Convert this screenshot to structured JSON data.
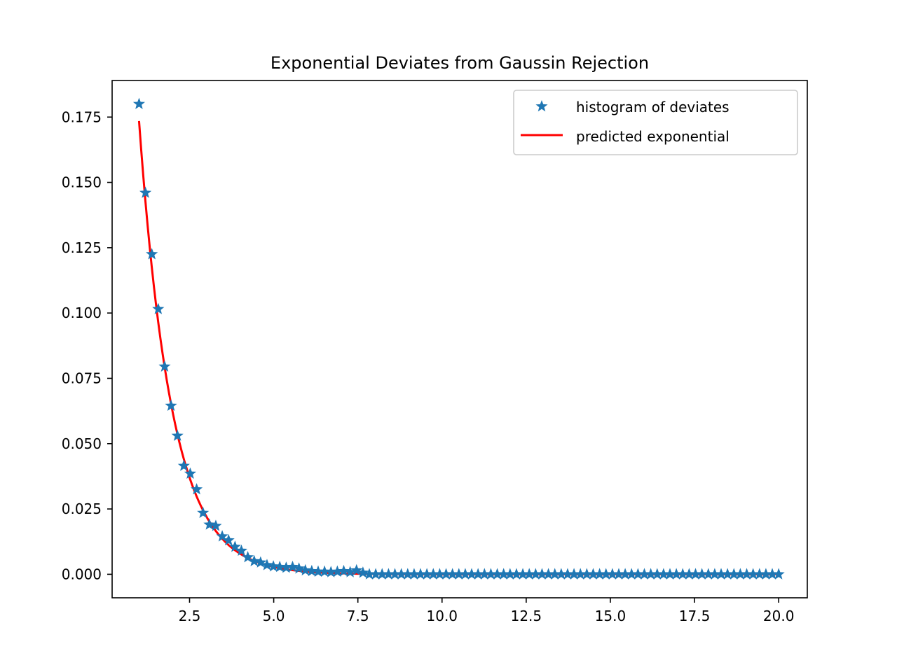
{
  "chart_data": {
    "type": "scatter",
    "title": "Exponential Deviates from Gaussin Rejection",
    "xlabel": "",
    "ylabel": "",
    "xlim": [
      0.2,
      20.85
    ],
    "ylim": [
      -0.009,
      0.189
    ],
    "xticks": [
      2.5,
      5.0,
      7.5,
      10.0,
      12.5,
      15.0,
      17.5,
      20.0
    ],
    "xtick_labels": [
      "2.5",
      "5.0",
      "7.5",
      "10.0",
      "12.5",
      "15.0",
      "17.5",
      "20.0"
    ],
    "yticks": [
      0.0,
      0.025,
      0.05,
      0.075,
      0.1,
      0.125,
      0.15,
      0.175
    ],
    "ytick_labels": [
      "0.000",
      "0.025",
      "0.050",
      "0.075",
      "0.100",
      "0.125",
      "0.150",
      "0.175"
    ],
    "grid": false,
    "legend_position": "top-right",
    "series": [
      {
        "name": "histogram of deviates",
        "kind": "scatter",
        "marker": "star",
        "color": "#1f77b4",
        "x_start": 1.0,
        "x_step": 0.19,
        "y_head": [
          0.18,
          0.146,
          0.1225,
          0.1015,
          0.0795,
          0.0645,
          0.053,
          0.0415,
          0.0385,
          0.0325,
          0.0235,
          0.019,
          0.0185,
          0.0145,
          0.013,
          0.0105,
          0.009,
          0.0065,
          0.005,
          0.0045,
          0.0035,
          0.003,
          0.0028,
          0.0025,
          0.0028,
          0.0022,
          0.0015,
          0.0012,
          0.001,
          0.001,
          0.0008,
          0.001,
          0.0012,
          0.0008,
          0.0015,
          0.0006
        ],
        "y_tail_value": 0.0
      },
      {
        "name": "predicted exponential",
        "kind": "line",
        "color": "#ff0000",
        "amplitude": 0.1735,
        "decay_rate": 1.03,
        "x_from": 1.0,
        "x_to": 20.0
      }
    ]
  }
}
